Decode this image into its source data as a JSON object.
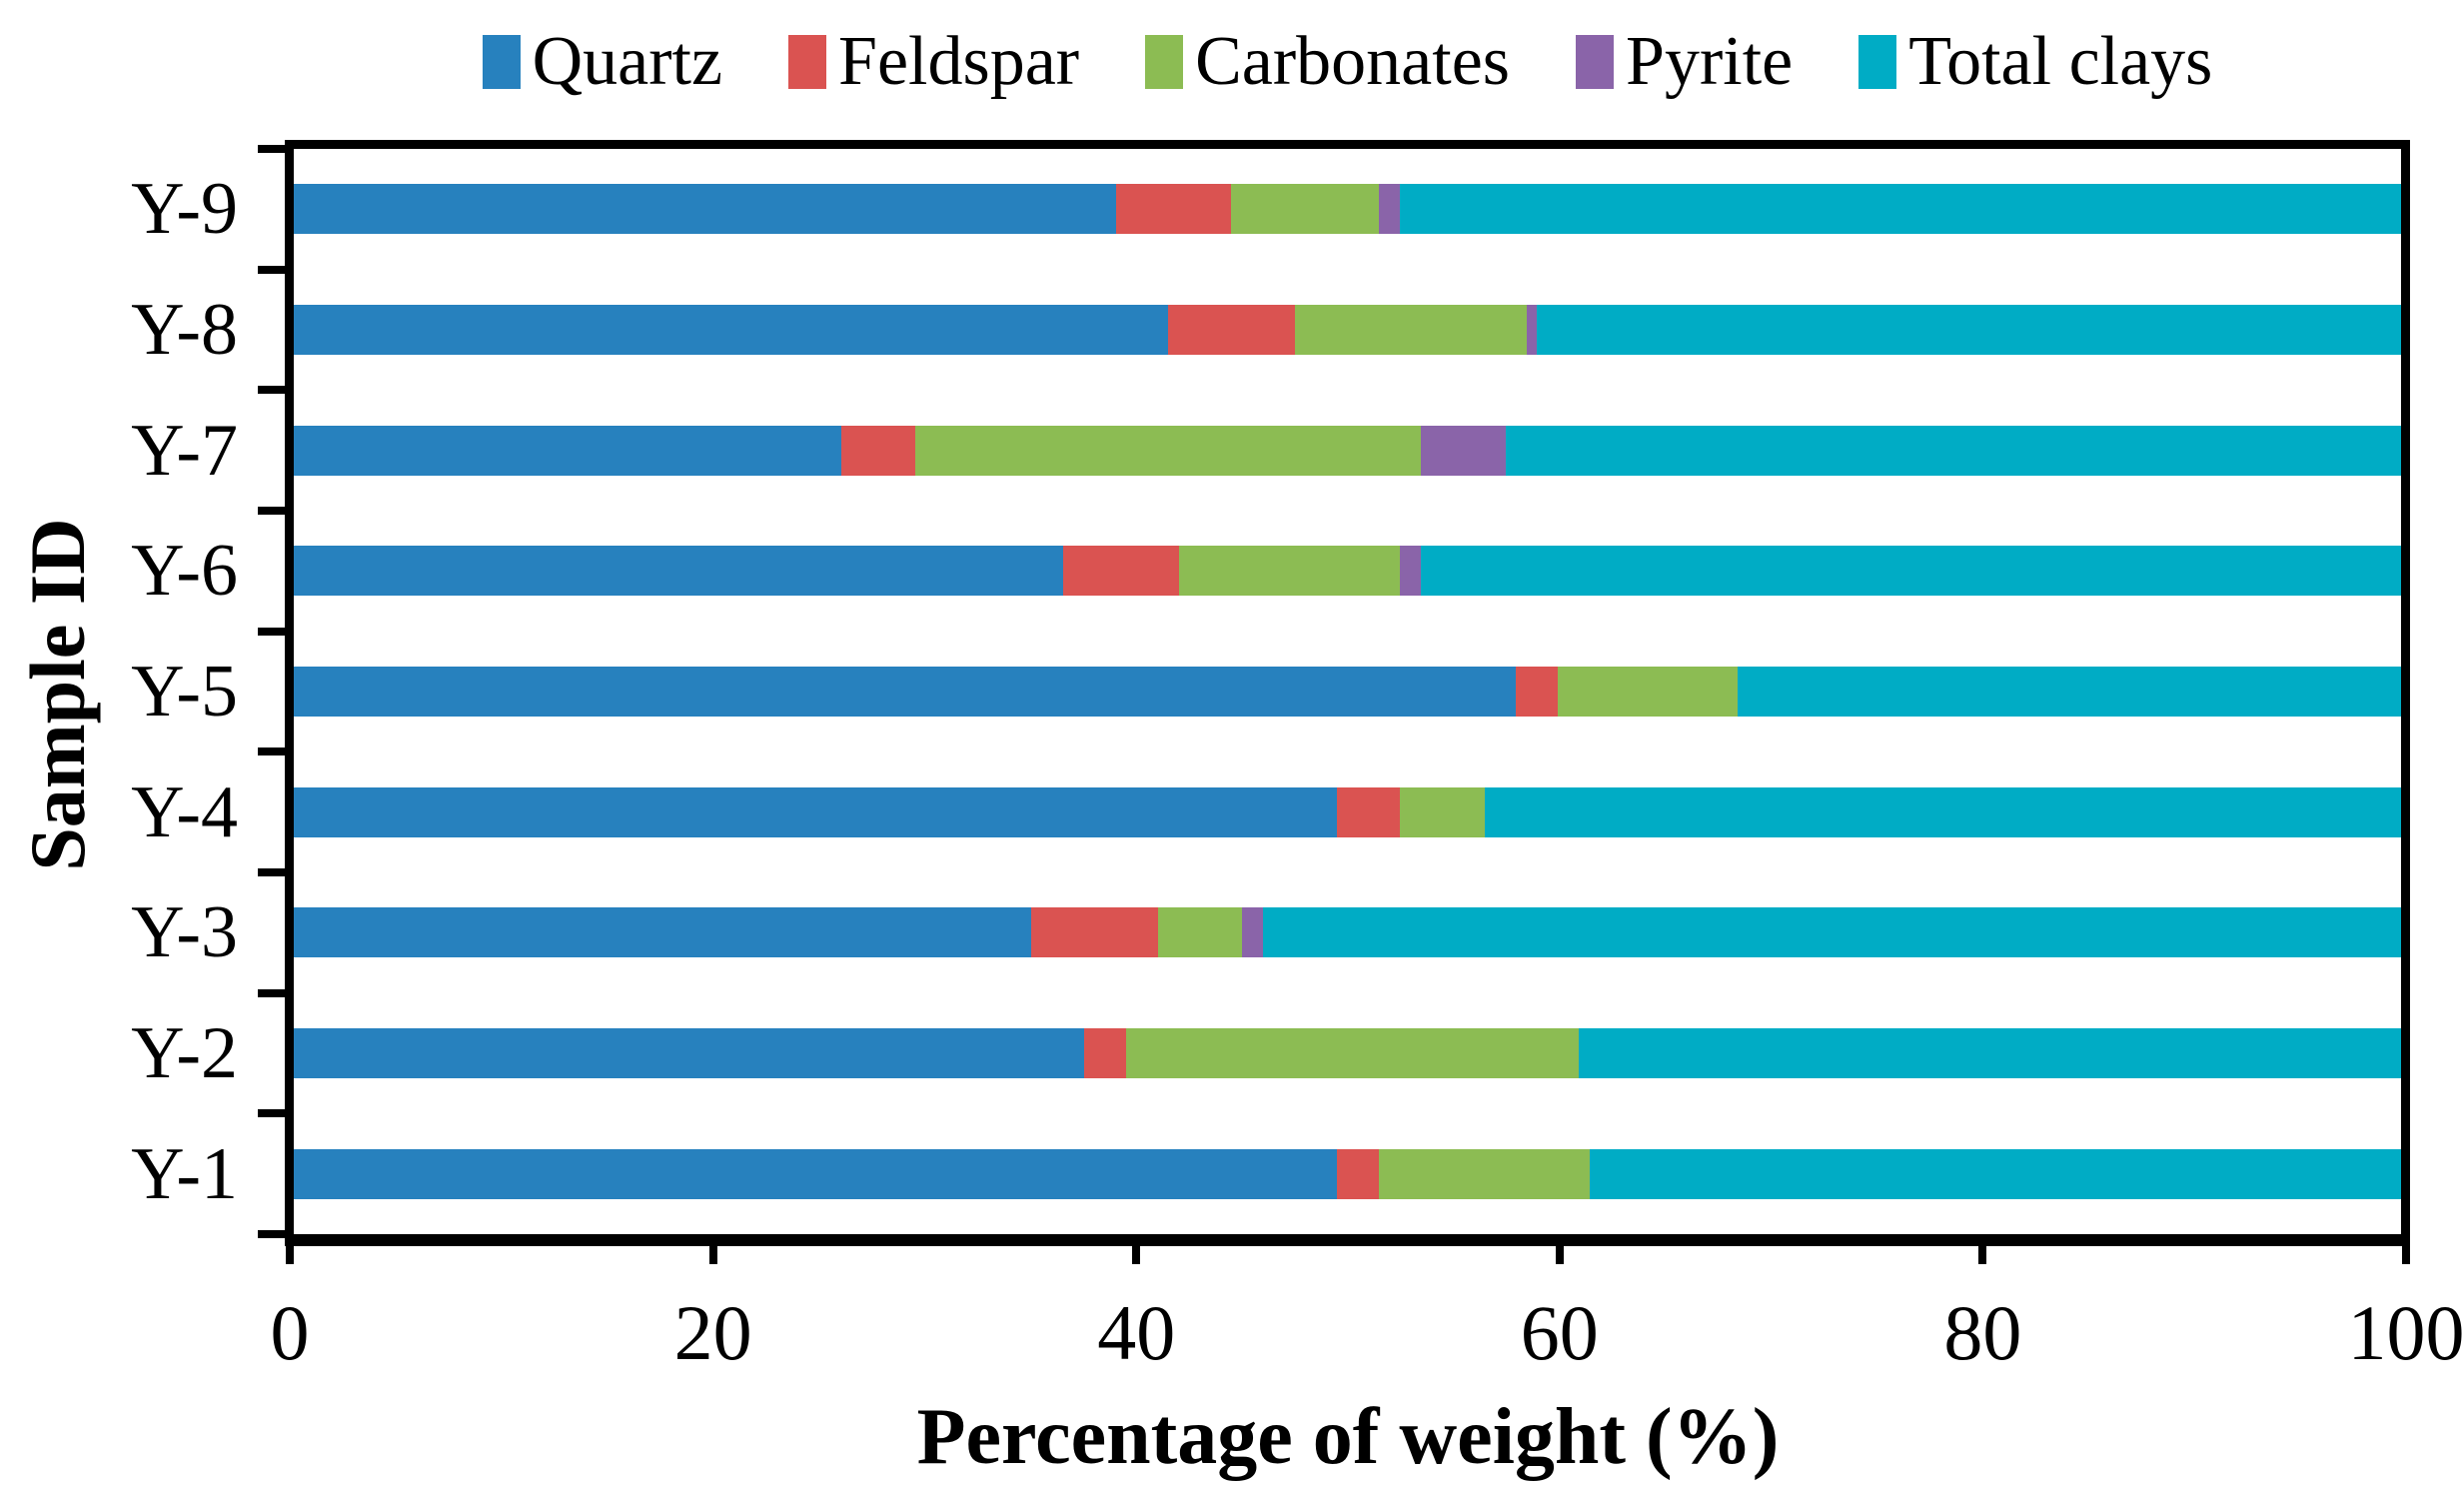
{
  "figure": {
    "background": "#ffffff",
    "axis_color": "#000000",
    "text_color": "#000000"
  },
  "chart_data": {
    "type": "bar",
    "orientation": "horizontal",
    "stacked": true,
    "title": "",
    "xlabel": "Percentage of weight (%)",
    "ylabel": "Sample ID",
    "xlim": [
      0,
      100
    ],
    "grid": false,
    "legend_position": "top",
    "x_ticks": [
      "0",
      "20",
      "40",
      "60",
      "80",
      "100"
    ],
    "x_tick_values": [
      0,
      20,
      40,
      60,
      80,
      100
    ],
    "categories": [
      "Y-1",
      "Y-2",
      "Y-3",
      "Y-4",
      "Y-5",
      "Y-6",
      "Y-7",
      "Y-8",
      "Y-9"
    ],
    "row_order_top_to_bottom": [
      "Y-9",
      "Y-8",
      "Y-7",
      "Y-6",
      "Y-5",
      "Y-4",
      "Y-3",
      "Y-2",
      "Y-1"
    ],
    "values_unit": "percent of weight",
    "series": [
      {
        "name": "Quartz",
        "color": "#2781BE",
        "values": [
          49.5,
          37.5,
          35.0,
          49.5,
          58.0,
          36.5,
          26.0,
          41.5,
          39.0
        ]
      },
      {
        "name": "Feldspar",
        "color": "#DA5351",
        "values": [
          2.0,
          2.0,
          6.0,
          3.0,
          2.0,
          5.5,
          3.5,
          6.0,
          5.5
        ]
      },
      {
        "name": "Carbonates",
        "color": "#8CBC53",
        "values": [
          10.0,
          21.5,
          4.0,
          4.0,
          8.5,
          10.5,
          24.0,
          11.0,
          7.0
        ]
      },
      {
        "name": "Pyrite",
        "color": "#8A64A9",
        "values": [
          0.0,
          0.0,
          1.0,
          0.0,
          0.0,
          1.0,
          4.0,
          0.5,
          1.0
        ]
      },
      {
        "name": "Total clays",
        "color": "#00ACC5",
        "values": [
          38.5,
          39.0,
          54.0,
          43.5,
          31.5,
          46.5,
          42.5,
          41.0,
          47.5
        ]
      }
    ]
  }
}
